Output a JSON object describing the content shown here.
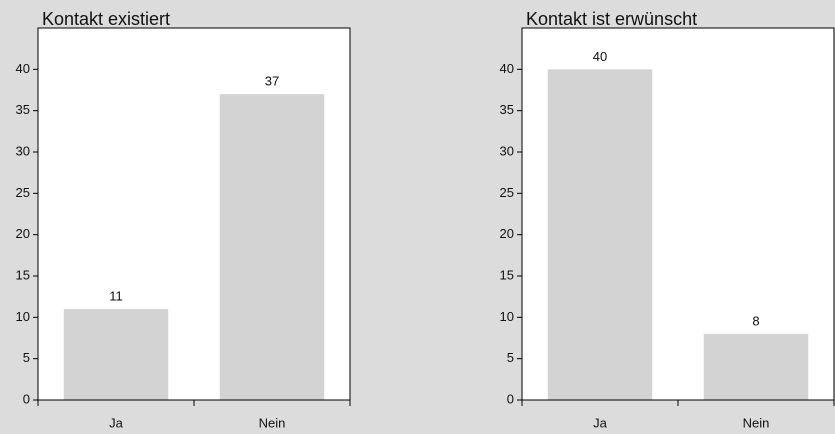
{
  "chart_data": [
    {
      "type": "bar",
      "title": "Kontakt existiert",
      "categories": [
        "Ja",
        "Nein"
      ],
      "values": [
        11,
        37
      ],
      "color": "#d3d3d3",
      "ylim": [
        0,
        45
      ],
      "yticks": [
        0,
        5,
        10,
        15,
        20,
        25,
        30,
        35,
        40
      ]
    },
    {
      "type": "bar",
      "title": "Kontakt ist erwünscht",
      "categories": [
        "Ja",
        "Nein"
      ],
      "values": [
        40,
        8
      ],
      "color": "#d3d3d3",
      "ylim": [
        0,
        45
      ],
      "yticks": [
        0,
        5,
        10,
        15,
        20,
        25,
        30,
        35,
        40
      ]
    }
  ]
}
